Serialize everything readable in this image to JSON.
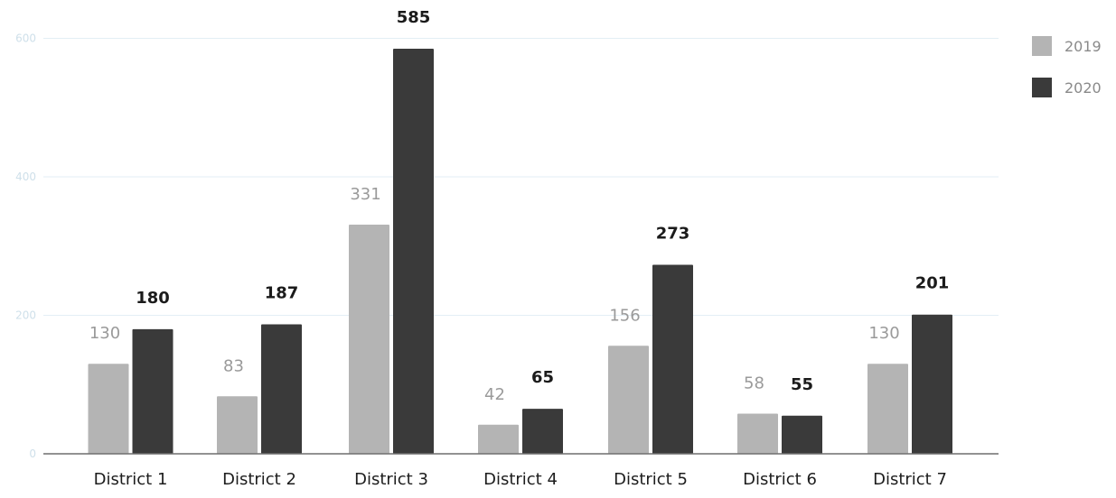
{
  "chart_data": {
    "type": "bar",
    "title": "",
    "xlabel": "",
    "ylabel": "",
    "categories": [
      "District 1",
      "District 2",
      "District 3",
      "District 4",
      "District 5",
      "District 6",
      "District 7"
    ],
    "series": [
      {
        "name": "2019",
        "values": [
          130,
          83,
          331,
          42,
          156,
          58,
          130
        ],
        "color": "#b4b4b4"
      },
      {
        "name": "2020",
        "values": [
          180,
          187,
          585,
          65,
          273,
          55,
          201
        ],
        "color": "#3a3a3a"
      }
    ],
    "y_ticks": [
      0,
      200,
      400,
      600
    ],
    "ylim": [
      0,
      600
    ],
    "grid": true,
    "legend_position": "top-right"
  }
}
